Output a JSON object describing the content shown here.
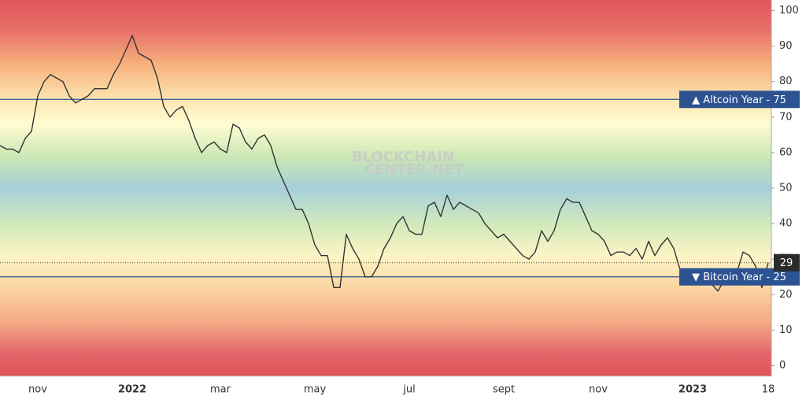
{
  "chart_data": {
    "type": "line",
    "watermark": [
      "BLOCKCHAIN",
      "CENTER.NET"
    ],
    "categories": [
      null,
      null,
      null,
      null,
      null,
      null,
      "nov",
      null,
      null,
      null,
      null,
      null,
      null,
      null,
      null,
      null,
      null,
      null,
      null,
      null,
      null,
      "2022",
      null,
      null,
      null,
      null,
      null,
      null,
      null,
      null,
      null,
      null,
      null,
      null,
      null,
      "mar",
      null,
      null,
      null,
      null,
      null,
      null,
      null,
      null,
      null,
      null,
      null,
      null,
      null,
      null,
      "may",
      null,
      null,
      null,
      null,
      null,
      null,
      null,
      null,
      null,
      null,
      null,
      null,
      null,
      null,
      "jul",
      null,
      null,
      null,
      null,
      null,
      null,
      null,
      null,
      null,
      null,
      null,
      null,
      null,
      null,
      "sept",
      null,
      null,
      null,
      null,
      null,
      null,
      null,
      null,
      null,
      null,
      null,
      null,
      null,
      null,
      "nov",
      null,
      null,
      null,
      null,
      null,
      null,
      null,
      null,
      null,
      null,
      null,
      null,
      null,
      null,
      "2023",
      null,
      null,
      null,
      null,
      null,
      null,
      null,
      null,
      null,
      null,
      null,
      "18"
    ],
    "series": [
      {
        "color": "#333333",
        "values": [
          62,
          61,
          61,
          60,
          64,
          66,
          76,
          80,
          82,
          81,
          80,
          76,
          74,
          75,
          76,
          78,
          78,
          78,
          82,
          85,
          89,
          93,
          88,
          87,
          86,
          81,
          73,
          70,
          72,
          73,
          69,
          64,
          60,
          62,
          63,
          61,
          60,
          68,
          67,
          63,
          61,
          64,
          65,
          62,
          56,
          52,
          48,
          44,
          44,
          40,
          34,
          31,
          31,
          22,
          22,
          37,
          33,
          30,
          25,
          25,
          28,
          33,
          36,
          40,
          42,
          38,
          37,
          37,
          45,
          46,
          42,
          48,
          44,
          46,
          45,
          44,
          43,
          40,
          38,
          36,
          37,
          35,
          33,
          31,
          30,
          32,
          38,
          35,
          38,
          44,
          47,
          46,
          46,
          42,
          38,
          37,
          35,
          31,
          32,
          32,
          31,
          33,
          30,
          35,
          31,
          34,
          36,
          33,
          27,
          23,
          25,
          24,
          27,
          23,
          21,
          24,
          27,
          26,
          32,
          31,
          28,
          22,
          29
        ]
      }
    ],
    "current": 29,
    "reference_lines": [
      {
        "value": 75,
        "text": "▲ Altcoin Year - 75",
        "color": "#2c5291"
      },
      {
        "value": 25,
        "text": "▼ Bitcoin Year - 25",
        "color": "#2c5291"
      }
    ],
    "ylim": [
      -3,
      103
    ],
    "yticks": [
      0,
      10,
      20,
      30,
      40,
      50,
      60,
      70,
      80,
      90,
      100
    ]
  }
}
